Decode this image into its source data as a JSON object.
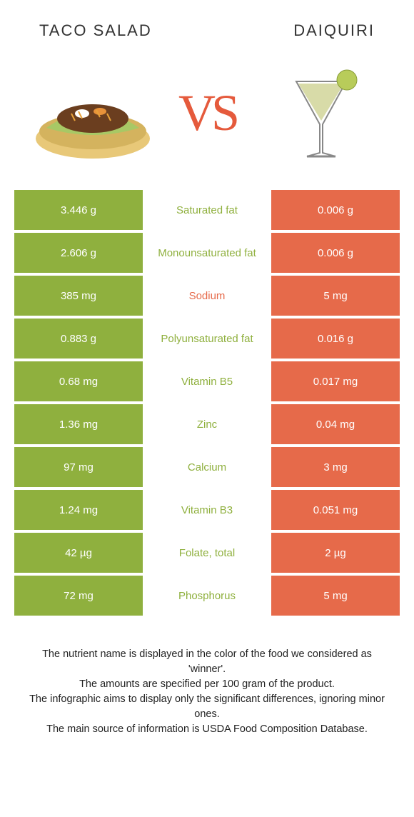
{
  "header": {
    "left_title": "TACO SALAD",
    "right_title": "DAIQUIRI",
    "vs_text": "VS"
  },
  "colors": {
    "green": "#8fb03e",
    "orange": "#e66a4a",
    "vs": "#e55a3c"
  },
  "rows": [
    {
      "left": "3.446 g",
      "label": "Saturated fat",
      "right": "0.006 g",
      "winner": "green"
    },
    {
      "left": "2.606 g",
      "label": "Monounsaturated fat",
      "right": "0.006 g",
      "winner": "green"
    },
    {
      "left": "385 mg",
      "label": "Sodium",
      "right": "5 mg",
      "winner": "orange"
    },
    {
      "left": "0.883 g",
      "label": "Polyunsaturated fat",
      "right": "0.016 g",
      "winner": "green"
    },
    {
      "left": "0.68 mg",
      "label": "Vitamin B5",
      "right": "0.017 mg",
      "winner": "green"
    },
    {
      "left": "1.36 mg",
      "label": "Zinc",
      "right": "0.04 mg",
      "winner": "green"
    },
    {
      "left": "97 mg",
      "label": "Calcium",
      "right": "3 mg",
      "winner": "green"
    },
    {
      "left": "1.24 mg",
      "label": "Vitamin B3",
      "right": "0.051 mg",
      "winner": "green"
    },
    {
      "left": "42 µg",
      "label": "Folate, total",
      "right": "2 µg",
      "winner": "green"
    },
    {
      "left": "72 mg",
      "label": "Phosphorus",
      "right": "5 mg",
      "winner": "green"
    }
  ],
  "footer": {
    "line1": "The nutrient name is displayed in the color of the food we considered as 'winner'.",
    "line2": "The amounts are specified per 100 gram of the product.",
    "line3": "The infographic aims to display only the significant differences, ignoring minor ones.",
    "line4": "The main source of information is USDA Food Composition Database."
  }
}
